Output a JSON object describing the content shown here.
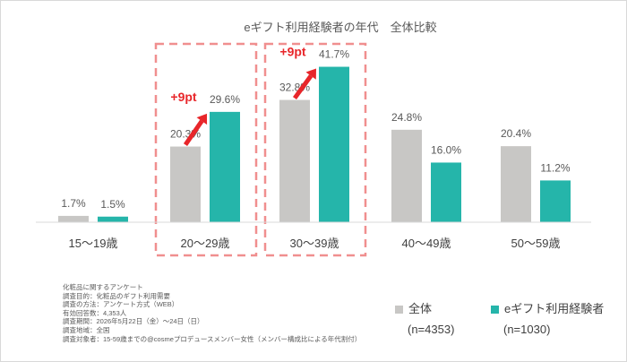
{
  "chart_data": {
    "type": "bar",
    "title": "eギフト利用経験者の年代　全体比較",
    "categories": [
      "15〜19歳",
      "20〜29歳",
      "30〜39歳",
      "40〜49歳",
      "50〜59歳"
    ],
    "series": [
      {
        "name": "全体",
        "sample": "(n=4353)",
        "color": "#c8c7c5",
        "values": [
          1.7,
          20.3,
          32.8,
          24.8,
          20.4
        ],
        "labels": [
          "1.7%",
          "20.3%",
          "32.8%",
          "24.8%",
          "20.4%"
        ]
      },
      {
        "name": "eギフト利用経験者",
        "sample": "(n=1030)",
        "color": "#25b5aa",
        "values": [
          1.5,
          29.6,
          41.7,
          16.0,
          11.2
        ],
        "labels": [
          "1.5%",
          "29.6%",
          "41.7%",
          "16.0%",
          "11.2%"
        ]
      }
    ],
    "ylim": [
      0,
      45
    ],
    "grid": false,
    "legend_position": "bottom-right",
    "annotations": [
      {
        "category": "20〜29歳",
        "text": "+9pt",
        "color": "#e8262a"
      },
      {
        "category": "30〜39歳",
        "text": "+9pt",
        "color": "#e8262a"
      }
    ],
    "highlight_color": "#f08f8f"
  },
  "notes": [
    "化粧品に関するアンケート",
    "調査目的：化粧品のギフト利用需要",
    "調査の方法：アンケート方式（WEB）",
    "有効回答数：4,353人",
    "調査期間：2026年5月22日（金）〜24日（日）",
    "調査地域：全国",
    "調査対象者：15-59歳までの@cosmeプロデュースメンバー女性（メンバー構成比による年代割付）"
  ]
}
